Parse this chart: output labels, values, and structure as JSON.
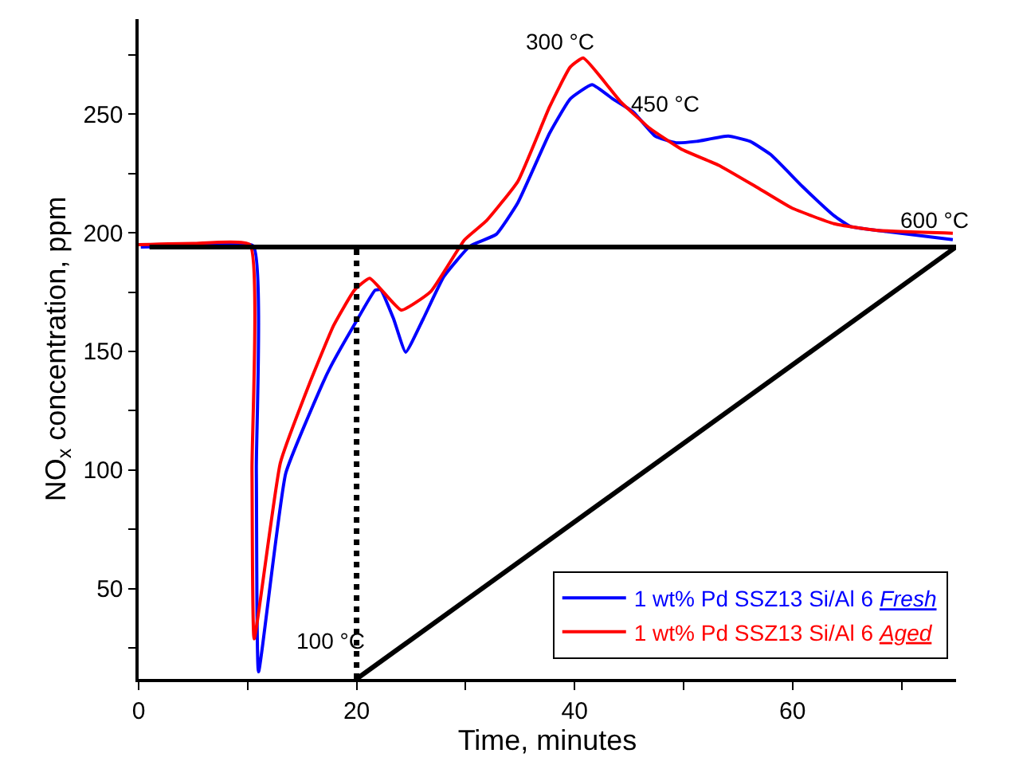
{
  "chart_data": {
    "type": "line",
    "xlabel": "Time, minutes",
    "ylabel": "NO$_{x}$ concentration, ppm",
    "xlim": [
      0,
      75
    ],
    "ylim": [
      12,
      290
    ],
    "xticks": [
      0,
      {
        "value": 10,
        "label": null
      },
      20,
      {
        "value": 30,
        "label": null
      },
      40,
      {
        "value": 50,
        "label": null
      },
      60,
      {
        "value": 70,
        "label": null
      }
    ],
    "yticks": [
      {
        "value": 25,
        "label": null
      },
      50,
      {
        "value": 75,
        "label": null
      },
      100,
      {
        "value": 125,
        "label": null
      },
      150,
      {
        "value": 175,
        "label": null
      },
      200,
      {
        "value": 225,
        "label": null
      },
      250,
      {
        "value": 275,
        "label": null
      }
    ],
    "legend": "bottom right",
    "marker": "none",
    "line_style": "solid",
    "series": [
      {
        "name": "1 wt% Pd SSZ13 Si/Al 6 Fresh",
        "color": "#0000ff",
        "x": [
          0.2,
          5,
          10.5,
          10.8,
          11.0,
          13.5,
          16.9,
          17.6,
          19.8,
          21.7,
          22.2,
          23.4,
          24.5,
          26.1,
          28.0,
          30.4,
          32.8,
          34.8,
          37.7,
          39.6,
          41.6,
          43.5,
          45.4,
          47.4,
          49.3,
          51.2,
          54.1,
          56.1,
          58.0,
          60.9,
          63.8,
          65.3,
          68.6,
          74.7
        ],
        "values": [
          194,
          194.5,
          194.5,
          100,
          15,
          98.7,
          136.7,
          143.4,
          161.3,
          175.8,
          176,
          163.6,
          149.7,
          163.6,
          181.5,
          194.4,
          199.3,
          212.7,
          241.9,
          256.4,
          262.4,
          256.4,
          250.8,
          240.7,
          237.9,
          238.5,
          240.7,
          238.5,
          232.9,
          219.5,
          207.2,
          202.7,
          200.5,
          197.1
        ]
      },
      {
        "name": "1 wt% Pd SSZ13 Si/Al 6 Aged",
        "color": "#ff0000",
        "x": [
          0,
          5,
          10.2,
          10.4,
          10.6,
          13.0,
          15.7,
          17.9,
          19.8,
          21.2,
          24.1,
          26.8,
          29.9,
          31.9,
          34.8,
          37.7,
          39.6,
          40.8,
          44.2,
          46.9,
          49.8,
          53.2,
          56.6,
          59.9,
          63.8,
          67.7,
          74.7
        ],
        "values": [
          195,
          195.5,
          195,
          100,
          28.9,
          103,
          136.7,
          161,
          175.8,
          180.8,
          167.4,
          175.2,
          197,
          205,
          221.7,
          253,
          269.8,
          273.6,
          255.3,
          244,
          235.2,
          228.5,
          219.5,
          210.5,
          203.8,
          201,
          199.8
        ]
      },
      {
        "color": "#000000",
        "x": [
          1,
          75
        ],
        "values": [
          194,
          194
        ]
      },
      {
        "color": "#000000",
        "x": [
          20,
          75
        ],
        "values": [
          12,
          194
        ]
      },
      {
        "color": "#000000",
        "x": [
          20,
          20
        ],
        "values": [
          12,
          195
        ],
        "line_style": "dotted"
      }
    ],
    "annotations": [
      "300 °C",
      "450 °C",
      "600 °C",
      "100 °C"
    ]
  }
}
